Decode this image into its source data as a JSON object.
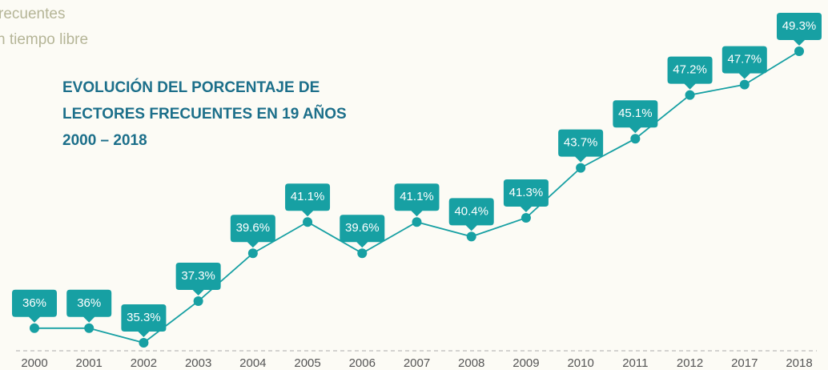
{
  "chart_data": {
    "type": "line",
    "title": [
      "EVOLUCIÓN DEL PORCENTAJE DE",
      "LECTORES FRECUENTES EN 19 AÑOS",
      "2000 – 2018"
    ],
    "annotations": [
      "recuentes",
      "n tiempo libre"
    ],
    "categories": [
      "2000",
      "2001",
      "2002",
      "2003",
      "2004",
      "2005",
      "2006",
      "2007",
      "2008",
      "2009",
      "2010",
      "2011",
      "2012",
      "2017",
      "2018"
    ],
    "values": [
      36,
      36,
      35.3,
      37.3,
      39.6,
      41.1,
      39.6,
      41.1,
      40.4,
      41.3,
      43.7,
      45.1,
      47.2,
      47.7,
      49.3
    ],
    "value_labels": [
      "36%",
      "36%",
      "35.3%",
      "37.3%",
      "39.6%",
      "41.1%",
      "39.6%",
      "41.1%",
      "40.4%",
      "41.3%",
      "43.7%",
      "45.1%",
      "47.2%",
      "47.7%",
      "49.3%"
    ],
    "color": "#17a0a3",
    "ylim": [
      35,
      50
    ]
  }
}
